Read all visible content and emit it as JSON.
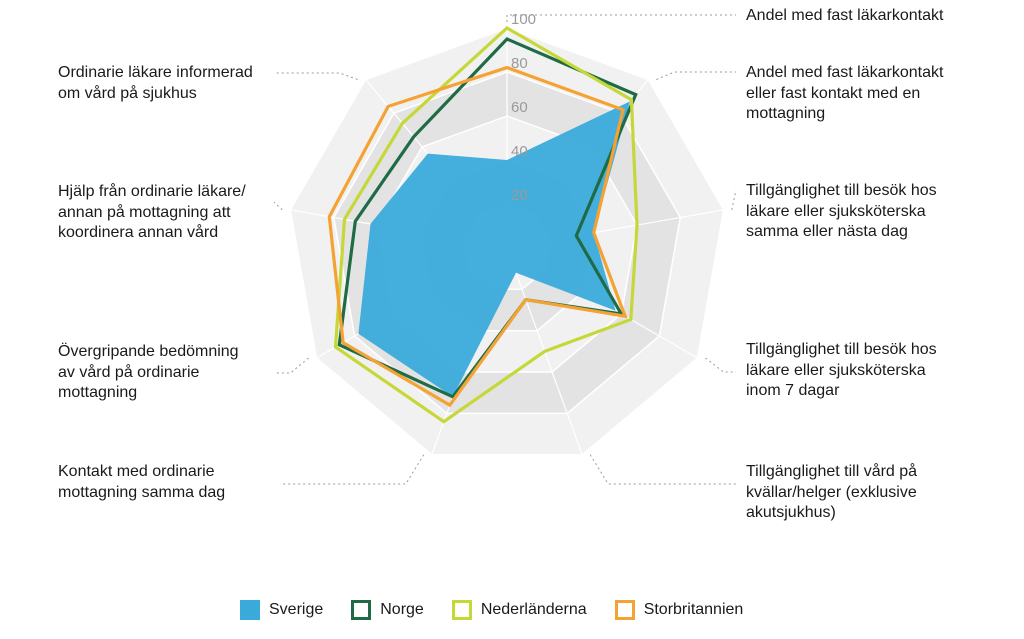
{
  "chart_data": {
    "type": "radar",
    "axes": [
      "Andel med fast läkarkontakt",
      "Andel med fast läkarkontakt\neller fast kontakt med en\nmottagning",
      "Tillgänglighet till besök hos\nläkare eller sjuksköterska\nsamma eller nästa dag",
      "Tillgänglighet till besök hos\nläkare eller sjuksköterska\ninom 7 dagar",
      "Tillgänglighet till vård på\nkvällar/helger (exklusive\nakutsjukhus)",
      "Kontakt med ordinarie\nmottagning samma dag",
      "Övergripande bedömning\nav vård på ordinarie\nmottagning",
      "Hjälp från ordinarie läkare/\nannan på mottagning att\nkoordinera annan vård",
      "Ordinarie läkare informerad\nom vård på sjukhus"
    ],
    "ticks": [
      20,
      40,
      60,
      80,
      100
    ],
    "tick_labels": [
      "20",
      "40",
      "60",
      "80",
      "100"
    ],
    "range": [
      0,
      100
    ],
    "series": [
      {
        "name": "Sverige",
        "color": "#3aaadb",
        "filled": true,
        "values": [
          40,
          87,
          40,
          57,
          12,
          72,
          78,
          63,
          56
        ]
      },
      {
        "name": "Norge",
        "color": "#1e6b45",
        "filled": false,
        "values": [
          95,
          91,
          32,
          60,
          25,
          72,
          88,
          70,
          66
        ]
      },
      {
        "name": "Nederländerna",
        "color": "#c6d838",
        "filled": false,
        "values": [
          100,
          88,
          60,
          65,
          50,
          84,
          90,
          75,
          74
        ]
      },
      {
        "name": "Storbritannien",
        "color": "#f4a233",
        "filled": false,
        "values": [
          82,
          82,
          40,
          62,
          25,
          76,
          86,
          82,
          84
        ]
      }
    ]
  }
}
